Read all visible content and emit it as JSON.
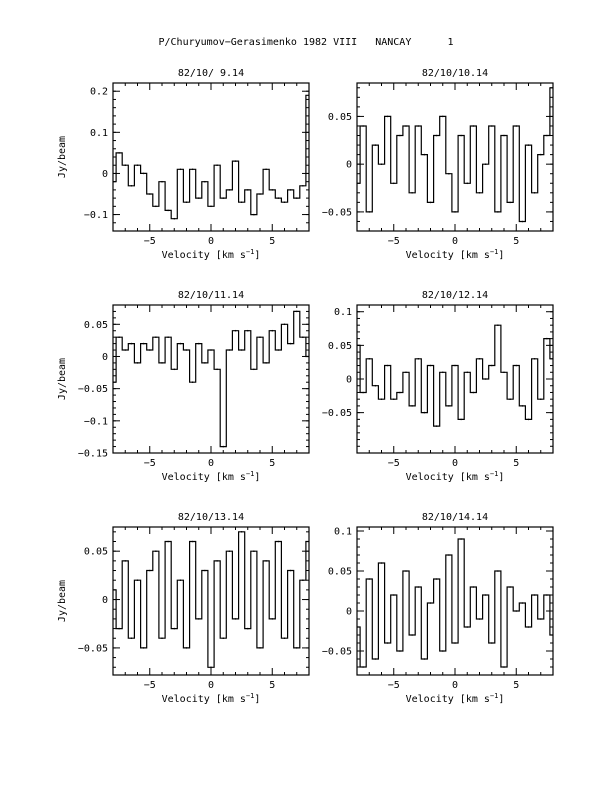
{
  "page": {
    "title": "P/Churyumov−Gerasimenko 1982 VIII   NANCAY      1"
  },
  "chart_data": [
    {
      "type": "line",
      "title": "82/10/ 9.14",
      "xlabel": "Velocity [km s",
      "xlabel_sup": "−1",
      "xlabel_end": "]",
      "ylabel": "Jy/beam",
      "xlim": [
        -8,
        8
      ],
      "ylim": [
        -0.14,
        0.22
      ],
      "xticks": [
        -5,
        0,
        5
      ],
      "xtick_labels": [
        "−5",
        "0",
        "5"
      ],
      "yticks": [
        -0.1,
        0,
        0.1,
        0.2
      ],
      "ytick_labels": [
        "−0.1",
        "0",
        "0.1",
        "0.2"
      ],
      "grid": false,
      "series": [
        {
          "x": [
            -8.0,
            -7.5,
            -7.0,
            -6.5,
            -6.0,
            -5.5,
            -5.0,
            -4.5,
            -4.0,
            -3.5,
            -3.0,
            -2.5,
            -2.0,
            -1.5,
            -1.0,
            -0.5,
            0.0,
            0.5,
            1.0,
            1.5,
            2.0,
            2.5,
            3.0,
            3.5,
            4.0,
            4.5,
            5.0,
            5.5,
            6.0,
            6.5,
            7.0,
            7.5,
            8.0
          ],
          "values": [
            -0.02,
            0.05,
            0.02,
            -0.03,
            0.02,
            0.0,
            -0.05,
            -0.08,
            -0.02,
            -0.09,
            -0.11,
            0.01,
            -0.07,
            0.01,
            -0.06,
            -0.02,
            -0.08,
            0.02,
            -0.06,
            -0.04,
            0.03,
            -0.07,
            -0.04,
            -0.1,
            -0.05,
            0.01,
            -0.04,
            -0.06,
            -0.07,
            -0.04,
            -0.06,
            -0.03,
            0.19
          ]
        }
      ]
    },
    {
      "type": "line",
      "title": "82/10/10.14",
      "xlabel": "Velocity [km s",
      "xlabel_sup": "−1",
      "xlabel_end": "]",
      "ylabel": "",
      "xlim": [
        -8,
        8
      ],
      "ylim": [
        -0.07,
        0.085
      ],
      "xticks": [
        -5,
        0,
        5
      ],
      "xtick_labels": [
        "−5",
        "0",
        "5"
      ],
      "yticks": [
        -0.05,
        0,
        0.05
      ],
      "ytick_labels": [
        "−0.05",
        "0",
        "0.05"
      ],
      "grid": false,
      "series": [
        {
          "x": [
            -8.0,
            -7.5,
            -7.0,
            -6.5,
            -6.0,
            -5.5,
            -5.0,
            -4.5,
            -4.0,
            -3.5,
            -3.0,
            -2.5,
            -2.0,
            -1.5,
            -1.0,
            -0.5,
            0.0,
            0.5,
            1.0,
            1.5,
            2.0,
            2.5,
            3.0,
            3.5,
            4.0,
            4.5,
            5.0,
            5.5,
            6.0,
            6.5,
            7.0,
            7.5,
            8.0
          ],
          "values": [
            -0.02,
            0.04,
            -0.05,
            0.02,
            0.0,
            0.05,
            -0.02,
            0.03,
            0.04,
            -0.03,
            0.04,
            0.01,
            -0.04,
            0.03,
            0.05,
            -0.01,
            -0.05,
            0.03,
            -0.02,
            0.04,
            -0.03,
            0.0,
            0.04,
            -0.05,
            0.03,
            -0.04,
            0.04,
            -0.06,
            0.02,
            -0.03,
            0.01,
            0.03,
            0.08
          ]
        }
      ]
    },
    {
      "type": "line",
      "title": "82/10/11.14",
      "xlabel": "Velocity [km s",
      "xlabel_sup": "−1",
      "xlabel_end": "]",
      "ylabel": "Jy/beam",
      "xlim": [
        -8,
        8
      ],
      "ylim": [
        -0.15,
        0.08
      ],
      "xticks": [
        -5,
        0,
        5
      ],
      "xtick_labels": [
        "−5",
        "0",
        "5"
      ],
      "yticks": [
        -0.15,
        -0.1,
        -0.05,
        0,
        0.05
      ],
      "ytick_labels": [
        "−0.15",
        "−0.1",
        "−0.05",
        "0",
        "0.05"
      ],
      "grid": false,
      "series": [
        {
          "x": [
            -8.0,
            -7.5,
            -7.0,
            -6.5,
            -6.0,
            -5.5,
            -5.0,
            -4.5,
            -4.0,
            -3.5,
            -3.0,
            -2.5,
            -2.0,
            -1.5,
            -1.0,
            -0.5,
            0.0,
            0.5,
            1.0,
            1.5,
            2.0,
            2.5,
            3.0,
            3.5,
            4.0,
            4.5,
            5.0,
            5.5,
            6.0,
            6.5,
            7.0,
            7.5,
            8.0
          ],
          "values": [
            -0.04,
            0.03,
            0.01,
            0.02,
            -0.01,
            0.02,
            0.01,
            0.03,
            -0.01,
            0.03,
            -0.02,
            0.02,
            0.01,
            -0.04,
            0.02,
            -0.01,
            0.01,
            -0.02,
            -0.14,
            0.01,
            0.04,
            0.01,
            0.04,
            -0.02,
            0.03,
            -0.01,
            0.04,
            0.01,
            0.05,
            0.02,
            0.07,
            0.03,
            0.0
          ]
        }
      ]
    },
    {
      "type": "line",
      "title": "82/10/12.14",
      "xlabel": "Velocity [km s",
      "xlabel_sup": "−1",
      "xlabel_end": "]",
      "ylabel": "",
      "xlim": [
        -8,
        8
      ],
      "ylim": [
        -0.11,
        0.11
      ],
      "xticks": [
        -5,
        0,
        5
      ],
      "xtick_labels": [
        "−5",
        "0",
        "5"
      ],
      "yticks": [
        -0.05,
        0,
        0.05,
        0.1
      ],
      "ytick_labels": [
        "−0.05",
        "0",
        "0.05",
        "0.1"
      ],
      "grid": false,
      "series": [
        {
          "x": [
            -8.0,
            -7.5,
            -7.0,
            -6.5,
            -6.0,
            -5.5,
            -5.0,
            -4.5,
            -4.0,
            -3.5,
            -3.0,
            -2.5,
            -2.0,
            -1.5,
            -1.0,
            -0.5,
            0.0,
            0.5,
            1.0,
            1.5,
            2.0,
            2.5,
            3.0,
            3.5,
            4.0,
            4.5,
            5.0,
            5.5,
            6.0,
            6.5,
            7.0,
            7.5,
            8.0
          ],
          "values": [
            0.05,
            -0.02,
            0.03,
            -0.01,
            -0.03,
            0.02,
            -0.03,
            -0.02,
            0.01,
            -0.04,
            0.03,
            -0.05,
            0.02,
            -0.07,
            0.01,
            -0.04,
            0.02,
            -0.06,
            0.01,
            -0.02,
            0.03,
            0.0,
            0.02,
            0.08,
            0.01,
            -0.03,
            0.02,
            -0.04,
            -0.06,
            0.03,
            -0.03,
            0.06,
            0.03
          ]
        }
      ]
    },
    {
      "type": "line",
      "title": "82/10/13.14",
      "xlabel": "Velocity [km s",
      "xlabel_sup": "−1",
      "xlabel_end": "]",
      "ylabel": "Jy/beam",
      "xlim": [
        -8,
        8
      ],
      "ylim": [
        -0.078,
        0.075
      ],
      "xticks": [
        -5,
        0,
        5
      ],
      "xtick_labels": [
        "−5",
        "0",
        "5"
      ],
      "yticks": [
        -0.05,
        0,
        0.05
      ],
      "ytick_labels": [
        "−0.05",
        "0",
        "0.05"
      ],
      "grid": false,
      "series": [
        {
          "x": [
            -8.0,
            -7.5,
            -7.0,
            -6.5,
            -6.0,
            -5.5,
            -5.0,
            -4.5,
            -4.0,
            -3.5,
            -3.0,
            -2.5,
            -2.0,
            -1.5,
            -1.0,
            -0.5,
            0.0,
            0.5,
            1.0,
            1.5,
            2.0,
            2.5,
            3.0,
            3.5,
            4.0,
            4.5,
            5.0,
            5.5,
            6.0,
            6.5,
            7.0,
            7.5,
            8.0
          ],
          "values": [
            0.01,
            -0.03,
            0.04,
            -0.04,
            0.02,
            -0.05,
            0.03,
            0.05,
            -0.04,
            0.06,
            -0.03,
            0.02,
            -0.05,
            0.06,
            -0.02,
            0.03,
            -0.07,
            0.04,
            -0.04,
            0.05,
            -0.02,
            0.07,
            -0.03,
            0.05,
            -0.05,
            0.04,
            -0.02,
            0.06,
            -0.04,
            0.03,
            -0.05,
            0.02,
            0.06
          ]
        }
      ]
    },
    {
      "type": "line",
      "title": "82/10/14.14",
      "xlabel": "Velocity [km s",
      "xlabel_sup": "−1",
      "xlabel_end": "]",
      "ylabel": "",
      "xlim": [
        -8,
        8
      ],
      "ylim": [
        -0.08,
        0.105
      ],
      "xticks": [
        -5,
        0,
        5
      ],
      "xtick_labels": [
        "−5",
        "0",
        "5"
      ],
      "yticks": [
        -0.05,
        0,
        0.05,
        0.1
      ],
      "ytick_labels": [
        "−0.05",
        "0",
        "0.05",
        "0.1"
      ],
      "grid": false,
      "series": [
        {
          "x": [
            -8.0,
            -7.5,
            -7.0,
            -6.5,
            -6.0,
            -5.5,
            -5.0,
            -4.5,
            -4.0,
            -3.5,
            -3.0,
            -2.5,
            -2.0,
            -1.5,
            -1.0,
            -0.5,
            0.0,
            0.5,
            1.0,
            1.5,
            2.0,
            2.5,
            3.0,
            3.5,
            4.0,
            4.5,
            5.0,
            5.5,
            6.0,
            6.5,
            7.0,
            7.5,
            8.0
          ],
          "values": [
            -0.02,
            -0.07,
            0.04,
            -0.06,
            0.06,
            -0.04,
            0.02,
            -0.05,
            0.05,
            -0.03,
            0.03,
            -0.06,
            0.01,
            0.04,
            -0.05,
            0.07,
            -0.04,
            0.09,
            -0.02,
            0.03,
            -0.01,
            0.02,
            -0.04,
            0.05,
            -0.07,
            0.03,
            0.0,
            0.01,
            -0.02,
            0.02,
            -0.01,
            0.02,
            -0.03
          ]
        }
      ]
    }
  ]
}
